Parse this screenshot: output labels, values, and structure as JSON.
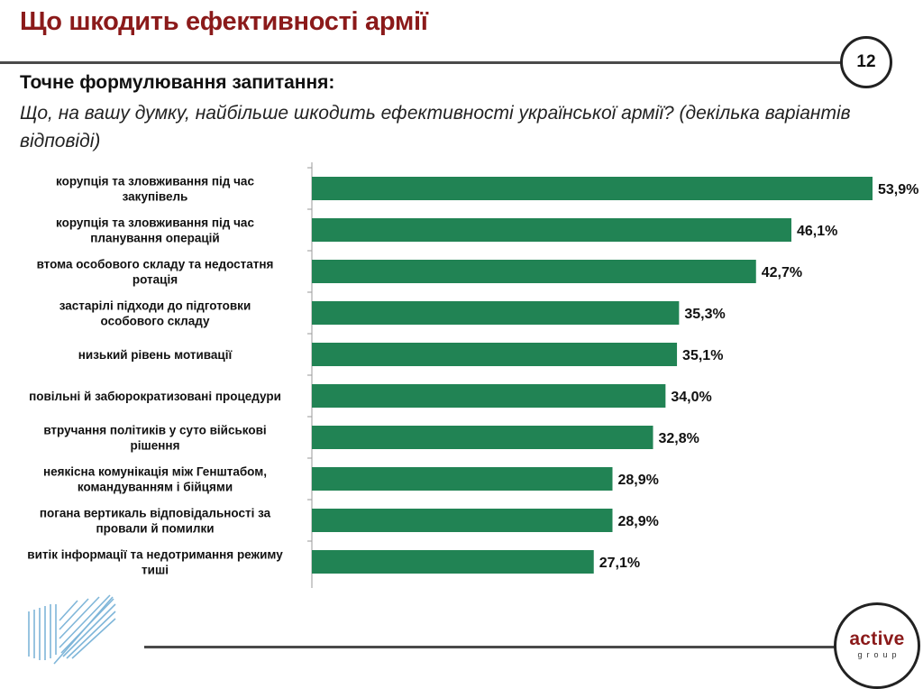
{
  "header": {
    "title": "Що шкодить ефективності армії",
    "page_number": "12"
  },
  "question": {
    "heading": "Точне формулювання запитання:",
    "text": "Що, на вашу думку, найбільше шкодить ефективності української армії? (декілька варіантів відповіді)"
  },
  "chart_data": {
    "type": "bar",
    "orientation": "horizontal",
    "categories": [
      "корупція та зловживання під час закупівель",
      "корупція та зловживання під час планування операцій",
      "втома особового складу та недостатня ротація",
      "застарілі підходи до підготовки особового складу",
      "низький рівень мотивації",
      "повільні й забюрократизовані процедури",
      "втручання політиків у суто військові рішення",
      "неякісна комунікація між Генштабом, командуванням і бійцями",
      "погана вертикаль відповідальності за провали й помилки",
      "витік інформації та недотримання режиму тиші"
    ],
    "values": [
      53.9,
      46.1,
      42.7,
      35.3,
      35.1,
      34.0,
      32.8,
      28.9,
      28.9,
      27.1
    ],
    "value_labels": [
      "53,9%",
      "46,1%",
      "42,7%",
      "35,3%",
      "35,1%",
      "34,0%",
      "32,8%",
      "28,9%",
      "28,9%",
      "27,1%"
    ],
    "xlim": [
      0,
      55
    ],
    "bar_color": "#218354",
    "title": "",
    "xlabel": "",
    "ylabel": ""
  },
  "footer": {
    "logo_main": "active",
    "logo_sub": "group"
  }
}
